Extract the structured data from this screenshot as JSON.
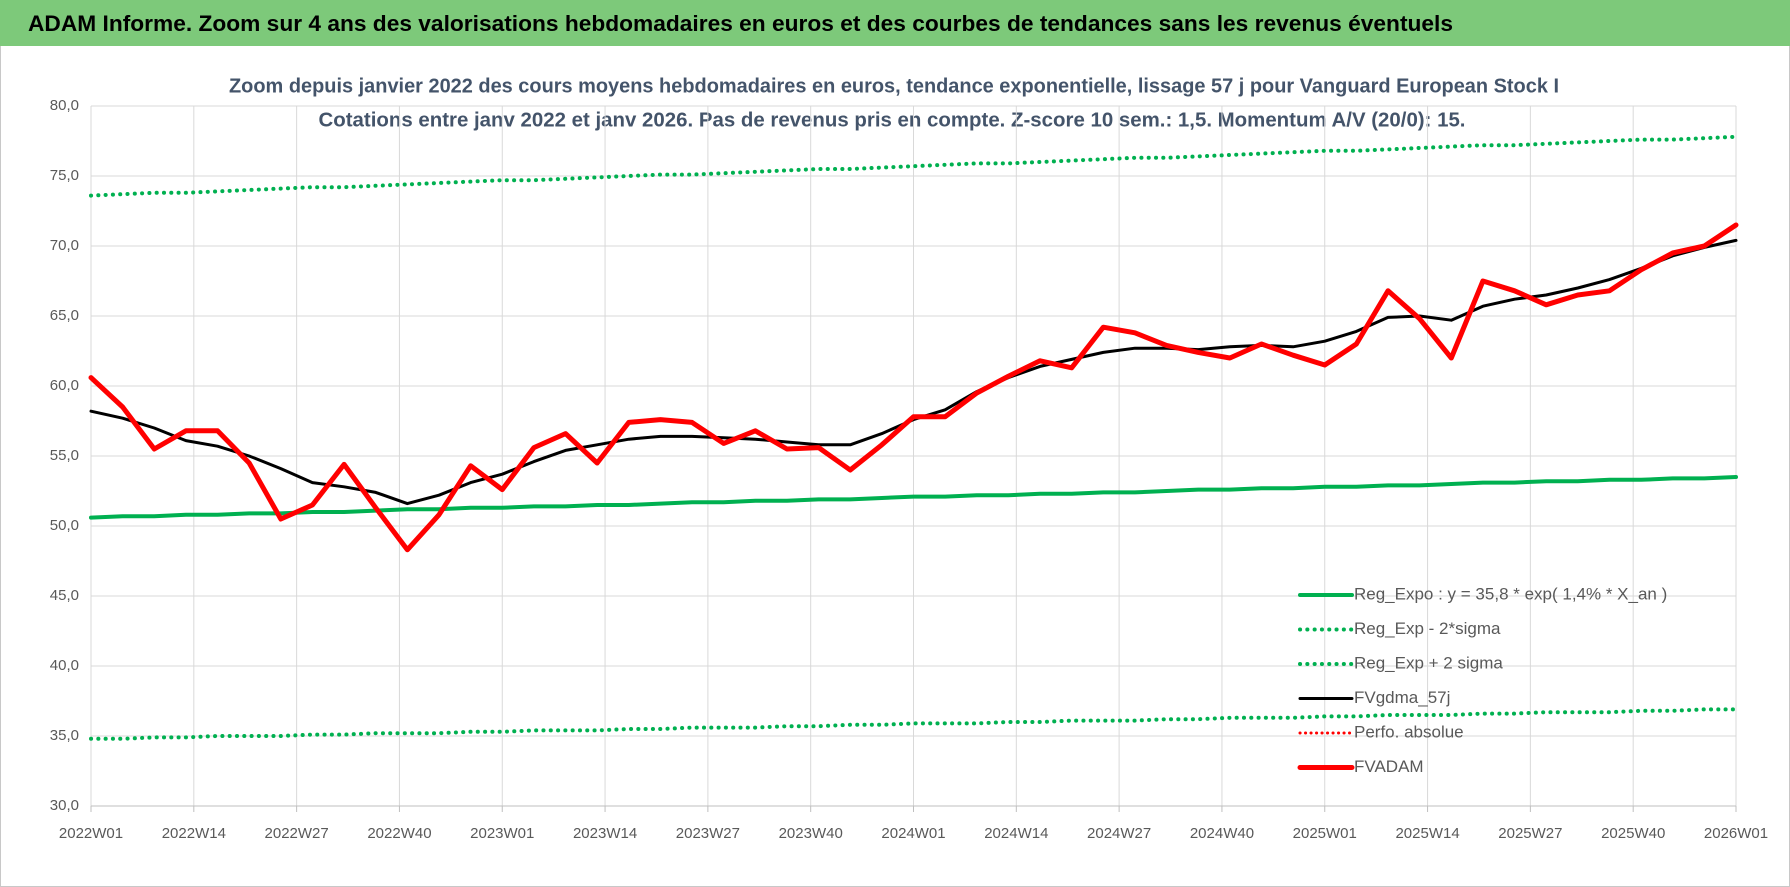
{
  "header": {
    "title": "ADAM Informe. Zoom sur 4 ans des valorisations hebdomadaires en euros et des courbes de tendances sans les revenus éventuels"
  },
  "chart_data": {
    "type": "line",
    "title": "Zoom depuis janvier 2022 des cours moyens hebdomadaires en euros, tendance exponentielle, lissage 57 j pour Vanguard European Stock I",
    "subtitle": "Cotations entre janv 2022 et janv 2026. Pas de revenus pris en compte. Z-score 10 sem.: 1,5. Momentum A/V (20/0): 15.",
    "x": [
      0,
      4,
      8,
      12,
      16,
      20,
      24,
      28,
      32,
      36,
      40,
      44,
      48,
      52,
      56,
      60,
      64,
      68,
      72,
      76,
      80,
      84,
      88,
      92,
      96,
      100,
      104,
      108,
      112,
      116,
      120,
      124,
      128,
      132,
      136,
      140,
      144,
      148,
      152,
      156,
      160,
      164,
      168,
      172,
      176,
      180,
      184,
      188,
      192,
      196,
      200,
      204,
      208
    ],
    "xlim": [
      0,
      208
    ],
    "xticks": [
      {
        "value": 0,
        "label": "2022W01"
      },
      {
        "value": 13,
        "label": "2022W14"
      },
      {
        "value": 26,
        "label": "2022W27"
      },
      {
        "value": 39,
        "label": "2022W40"
      },
      {
        "value": 52,
        "label": "2023W01"
      },
      {
        "value": 65,
        "label": "2023W14"
      },
      {
        "value": 78,
        "label": "2023W27"
      },
      {
        "value": 91,
        "label": "2023W40"
      },
      {
        "value": 104,
        "label": "2024W01"
      },
      {
        "value": 117,
        "label": "2024W14"
      },
      {
        "value": 130,
        "label": "2024W27"
      },
      {
        "value": 143,
        "label": "2024W40"
      },
      {
        "value": 156,
        "label": "2025W01"
      },
      {
        "value": 169,
        "label": "2025W14"
      },
      {
        "value": 182,
        "label": "2025W27"
      },
      {
        "value": 195,
        "label": "2025W40"
      },
      {
        "value": 208,
        "label": "2026W01"
      }
    ],
    "ylim": [
      30,
      80
    ],
    "yticks": [
      {
        "value": 30,
        "label": "30,0"
      },
      {
        "value": 35,
        "label": "35,0"
      },
      {
        "value": 40,
        "label": "40,0"
      },
      {
        "value": 45,
        "label": "45,0"
      },
      {
        "value": 50,
        "label": "50,0"
      },
      {
        "value": 55,
        "label": "55,0"
      },
      {
        "value": 60,
        "label": "60,0"
      },
      {
        "value": 65,
        "label": "65,0"
      },
      {
        "value": 70,
        "label": "70,0"
      },
      {
        "value": 75,
        "label": "75,0"
      },
      {
        "value": 80,
        "label": "80,0"
      }
    ],
    "grid": true,
    "legend": "lower-right",
    "series": [
      {
        "name": "Reg_Expo : y = 35,8 * exp( 1,4% *  X_an )",
        "color": "#00b050",
        "style": "solid",
        "width": 4,
        "values": [
          50.6,
          50.7,
          50.7,
          50.8,
          50.8,
          50.9,
          50.9,
          51.0,
          51.0,
          51.1,
          51.2,
          51.2,
          51.3,
          51.3,
          51.4,
          51.4,
          51.5,
          51.5,
          51.6,
          51.7,
          51.7,
          51.8,
          51.8,
          51.9,
          51.9,
          52.0,
          52.1,
          52.1,
          52.2,
          52.2,
          52.3,
          52.3,
          52.4,
          52.4,
          52.5,
          52.6,
          52.6,
          52.7,
          52.7,
          52.8,
          52.8,
          52.9,
          52.9,
          53.0,
          53.1,
          53.1,
          53.2,
          53.2,
          53.3,
          53.3,
          53.4,
          53.4,
          53.5
        ]
      },
      {
        "name": "Reg_Exp - 2*sigma",
        "color": "#00b050",
        "style": "dotted",
        "width": 4,
        "values": [
          34.8,
          34.8,
          34.9,
          34.9,
          35.0,
          35.0,
          35.0,
          35.1,
          35.1,
          35.2,
          35.2,
          35.2,
          35.3,
          35.3,
          35.4,
          35.4,
          35.4,
          35.5,
          35.5,
          35.6,
          35.6,
          35.6,
          35.7,
          35.7,
          35.8,
          35.8,
          35.9,
          35.9,
          35.9,
          36.0,
          36.0,
          36.1,
          36.1,
          36.1,
          36.2,
          36.2,
          36.3,
          36.3,
          36.3,
          36.4,
          36.4,
          36.5,
          36.5,
          36.5,
          36.6,
          36.6,
          36.7,
          36.7,
          36.7,
          36.8,
          36.8,
          36.9,
          36.9
        ]
      },
      {
        "name": "Reg_Exp + 2 sigma",
        "color": "#00b050",
        "style": "dotted",
        "width": 4,
        "values": [
          73.6,
          73.7,
          73.8,
          73.8,
          73.9,
          74.0,
          74.1,
          74.2,
          74.2,
          74.3,
          74.4,
          74.5,
          74.6,
          74.7,
          74.7,
          74.8,
          74.9,
          75.0,
          75.1,
          75.1,
          75.2,
          75.3,
          75.4,
          75.5,
          75.5,
          75.6,
          75.7,
          75.8,
          75.9,
          75.9,
          76.0,
          76.1,
          76.2,
          76.3,
          76.3,
          76.4,
          76.5,
          76.6,
          76.7,
          76.8,
          76.8,
          76.9,
          77.0,
          77.1,
          77.2,
          77.2,
          77.3,
          77.4,
          77.5,
          77.6,
          77.6,
          77.7,
          77.8
        ]
      },
      {
        "name": "FVgdma_57j",
        "color": "#000000",
        "style": "solid",
        "width": 3,
        "values": [
          58.2,
          57.7,
          57.0,
          56.1,
          55.7,
          55.0,
          54.1,
          53.1,
          52.8,
          52.4,
          51.6,
          52.2,
          53.1,
          53.7,
          54.6,
          55.4,
          55.8,
          56.2,
          56.4,
          56.4,
          56.3,
          56.2,
          56.0,
          55.8,
          55.8,
          56.6,
          57.6,
          58.3,
          59.6,
          60.6,
          61.4,
          61.9,
          62.4,
          62.7,
          62.7,
          62.6,
          62.8,
          62.9,
          62.8,
          63.2,
          63.9,
          64.9,
          65.0,
          64.7,
          65.7,
          66.2,
          66.5,
          67.0,
          67.6,
          68.4,
          69.3,
          69.9,
          70.4
        ]
      },
      {
        "name": "Perfo. absolue",
        "color": "#ff0000",
        "style": "dotted",
        "width": 3,
        "values": [
          null,
          null,
          null,
          null,
          null,
          null,
          null,
          null,
          null,
          null,
          null,
          null,
          null,
          null,
          null,
          null,
          null,
          null,
          null,
          null,
          null,
          null,
          null,
          null,
          null,
          null,
          null,
          null,
          null,
          null,
          null,
          null,
          null,
          null,
          null,
          null,
          null,
          null,
          null,
          null,
          null,
          null,
          null,
          null,
          null,
          null,
          null,
          null,
          null,
          null,
          null,
          null,
          null
        ]
      },
      {
        "name": "FVADAM",
        "color": "#ff0000",
        "style": "solid",
        "width": 5,
        "values": [
          60.6,
          58.5,
          55.5,
          56.8,
          56.8,
          54.5,
          50.5,
          51.5,
          54.4,
          51.3,
          48.3,
          50.8,
          54.3,
          52.6,
          55.6,
          56.6,
          54.5,
          57.4,
          57.6,
          57.4,
          55.9,
          56.8,
          55.5,
          55.6,
          54.0,
          55.8,
          57.8,
          57.8,
          59.5,
          60.7,
          61.8,
          61.3,
          64.2,
          63.8,
          62.9,
          62.4,
          62.0,
          63.0,
          62.2,
          61.5,
          63.0,
          66.8,
          64.8,
          62.0,
          67.5,
          66.8,
          65.8,
          66.5,
          66.8,
          68.3,
          69.5,
          70.0,
          71.5
        ]
      }
    ]
  }
}
